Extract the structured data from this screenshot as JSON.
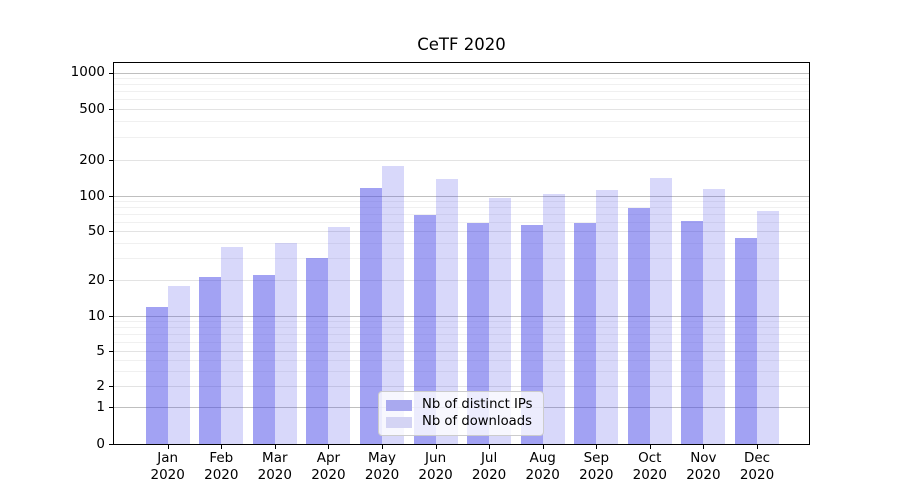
{
  "chart_data": {
    "type": "bar",
    "title": "CeTF 2020",
    "year_label": "2020",
    "months": [
      "Jan",
      "Feb",
      "Mar",
      "Apr",
      "May",
      "Jun",
      "Jul",
      "Aug",
      "Sep",
      "Oct",
      "Nov",
      "Dec"
    ],
    "categories": [
      "Jan 2020",
      "Feb 2020",
      "Mar 2020",
      "Apr 2020",
      "May 2020",
      "Jun 2020",
      "Jul 2020",
      "Aug 2020",
      "Sep 2020",
      "Oct 2020",
      "Nov 2020",
      "Dec 2020"
    ],
    "series": [
      {
        "name": "Nb of distinct IPs",
        "color": "rgba(70,70,232,0.50)",
        "legend_swatch_color": "#a9a9ef",
        "values": [
          12,
          21,
          22,
          30,
          116,
          69,
          59,
          56,
          59,
          79,
          61,
          44
        ]
      },
      {
        "name": "Nb of downloads",
        "color": "rgba(70,70,232,0.21)",
        "legend_swatch_color": "#d4d4f4",
        "values": [
          18,
          37,
          40,
          54,
          178,
          138,
          97,
          105,
          113,
          141,
          115,
          75
        ]
      }
    ],
    "y_axis": {
      "scale": "symlog",
      "tick_values": [
        0,
        1,
        2,
        5,
        10,
        20,
        50,
        100,
        200,
        500,
        1000
      ],
      "tick_labels": [
        "0",
        "1",
        "2",
        "5",
        "10",
        "20",
        "50",
        "100",
        "200",
        "500",
        "1000"
      ],
      "ylim": [
        0,
        1230
      ],
      "grid": true
    },
    "x_axis": {
      "tick_labels_line1": [
        "Jan",
        "Feb",
        "Mar",
        "Apr",
        "May",
        "Jun",
        "Jul",
        "Aug",
        "Sep",
        "Oct",
        "Nov",
        "Dec"
      ],
      "tick_labels_line2": "2020"
    },
    "legend": {
      "position": "lower center",
      "entries": [
        "Nb of distinct IPs",
        "Nb of downloads"
      ]
    },
    "colors": {
      "bar_dark": "#a6a6f0",
      "bar_light": "#dadaf8",
      "grid_major": "#bfbfbf",
      "grid_mid": "#e3e3e3",
      "grid_minor": "#f0f0f0",
      "spine": "#000000",
      "background": "#ffffff"
    }
  }
}
